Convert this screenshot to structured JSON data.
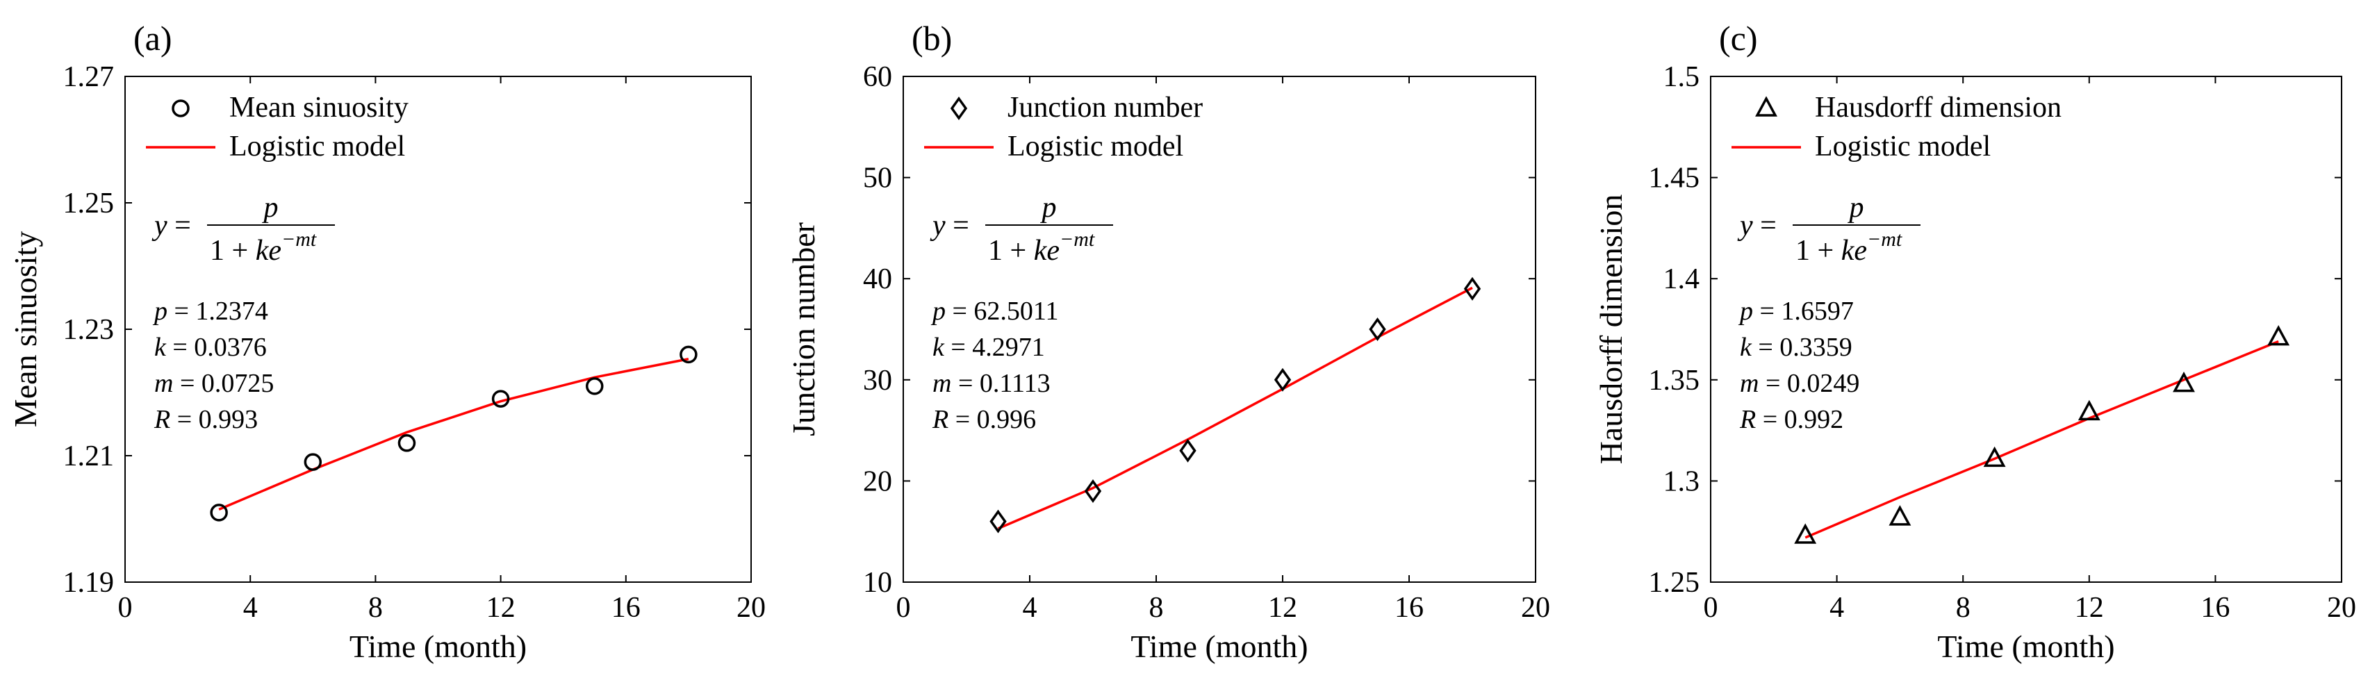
{
  "chart_data": [
    {
      "type": "scatter",
      "panel_label": "(a)",
      "xlabel": "Time (month)",
      "ylabel": "Mean sinuosity",
      "xlim": [
        0,
        20
      ],
      "ylim": [
        1.19,
        1.27
      ],
      "xticks": [
        0,
        4,
        8,
        12,
        16,
        20
      ],
      "xtick_labels": [
        "0",
        "4",
        "8",
        "12",
        "16",
        "20"
      ],
      "yticks": [
        1.19,
        1.21,
        1.23,
        1.25,
        1.27
      ],
      "ytick_labels": [
        "1.19",
        "1.21",
        "1.23",
        "1.25",
        "1.27"
      ],
      "marker": "circle",
      "legend": {
        "placement": "top-left",
        "observed": "Mean sinuosity",
        "model": "Logistic model"
      },
      "equation": {
        "lhs": "y =",
        "numerator": "p",
        "denominator": "1 + ke",
        "exponent": "−mt"
      },
      "params": [
        {
          "name": "p",
          "text": " = 1.2374"
        },
        {
          "name": "k",
          "text": " = 0.0376"
        },
        {
          "name": "m",
          "text": " = 0.0725"
        },
        {
          "name": "R",
          "text": " = 0.993"
        }
      ],
      "series": [
        {
          "name": "Mean sinuosity",
          "x": [
            3,
            6,
            9,
            12,
            15,
            18
          ],
          "y": [
            1.201,
            1.209,
            1.212,
            1.219,
            1.221,
            1.226
          ]
        },
        {
          "name": "Logistic model",
          "x": [
            3,
            6,
            9,
            12,
            15,
            18
          ],
          "y": [
            1.2015,
            1.2078,
            1.2137,
            1.2186,
            1.2224,
            1.2253
          ]
        }
      ]
    },
    {
      "type": "scatter",
      "panel_label": "(b)",
      "xlabel": "Time (month)",
      "ylabel": "Junction number",
      "xlim": [
        0,
        20
      ],
      "ylim": [
        10,
        60
      ],
      "xticks": [
        0,
        4,
        8,
        12,
        16,
        20
      ],
      "xtick_labels": [
        "0",
        "4",
        "8",
        "12",
        "16",
        "20"
      ],
      "yticks": [
        10,
        20,
        30,
        40,
        50,
        60
      ],
      "ytick_labels": [
        "10",
        "20",
        "30",
        "40",
        "50",
        "60"
      ],
      "marker": "diamond",
      "legend": {
        "placement": "top-left",
        "observed": "Junction number",
        "model": "Logistic model"
      },
      "equation": {
        "lhs": "y =",
        "numerator": "p",
        "denominator": "1 + ke",
        "exponent": "−mt"
      },
      "params": [
        {
          "name": "p",
          "text": " = 62.5011"
        },
        {
          "name": "k",
          "text": " = 4.2971"
        },
        {
          "name": "m",
          "text": " = 0.1113"
        },
        {
          "name": "R",
          "text": " = 0.996"
        }
      ],
      "series": [
        {
          "name": "Junction number",
          "x": [
            3,
            6,
            9,
            12,
            15,
            18
          ],
          "y": [
            16,
            19,
            23,
            30,
            35,
            39
          ]
        },
        {
          "name": "Logistic model",
          "x": [
            3,
            6,
            9,
            12,
            15,
            18
          ],
          "y": [
            15.3,
            19.3,
            24.1,
            29.1,
            34.2,
            39.1
          ]
        }
      ]
    },
    {
      "type": "scatter",
      "panel_label": "(c)",
      "xlabel": "Time (month)",
      "ylabel": "Hausdorff dimension",
      "xlim": [
        0,
        20
      ],
      "ylim": [
        1.25,
        1.5
      ],
      "xticks": [
        0,
        4,
        8,
        12,
        16,
        20
      ],
      "xtick_labels": [
        "0",
        "4",
        "8",
        "12",
        "16",
        "20"
      ],
      "yticks": [
        1.25,
        1.3,
        1.35,
        1.4,
        1.45,
        1.5
      ],
      "ytick_labels": [
        "1.25",
        "1.3",
        "1.35",
        "1.4",
        "1.45",
        "1.5"
      ],
      "marker": "triangle",
      "legend": {
        "placement": "top-left",
        "observed": "Hausdorff dimension",
        "model": "Logistic model"
      },
      "equation": {
        "lhs": "y =",
        "numerator": "p",
        "denominator": "1 + ke",
        "exponent": "−mt"
      },
      "params": [
        {
          "name": "p",
          "text": " = 1.6597"
        },
        {
          "name": "k",
          "text": " = 0.3359"
        },
        {
          "name": "m",
          "text": " = 0.0249"
        },
        {
          "name": "R",
          "text": " = 0.992"
        }
      ],
      "series": [
        {
          "name": "Hausdorff dimension",
          "x": [
            3,
            6,
            9,
            12,
            15,
            18
          ],
          "y": [
            1.273,
            1.282,
            1.311,
            1.334,
            1.348,
            1.371
          ]
        },
        {
          "name": "Logistic model",
          "x": [
            3,
            6,
            9,
            12,
            15,
            18
          ],
          "y": [
            1.272,
            1.292,
            1.311,
            1.331,
            1.35,
            1.369
          ]
        }
      ]
    }
  ],
  "style": {
    "axis_color": "#000000",
    "model_line_color": "#ff0000",
    "marker_color": "#000000"
  }
}
